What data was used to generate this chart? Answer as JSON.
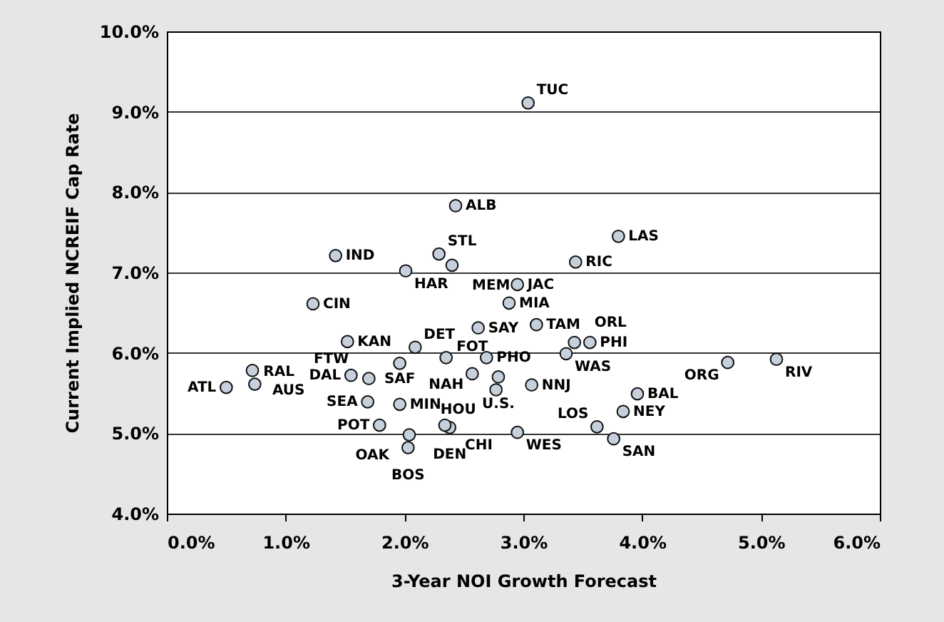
{
  "chart_data": {
    "type": "scatter",
    "xlabel": "3-Year NOI Growth Forecast",
    "ylabel": "Current Implied NCREIF Cap Rate",
    "x": [
      3.04,
      2.43,
      1.42,
      2.01,
      2.29,
      2.4,
      2.95,
      2.88,
      1.23,
      3.11,
      2.62,
      1.52,
      2.09,
      2.35,
      2.69,
      3.43,
      3.56,
      3.36,
      2.79,
      2.57,
      2.77,
      3.07,
      4.72,
      5.13,
      3.96,
      3.84,
      3.62,
      3.76,
      2.95,
      2.38,
      2.34,
      1.96,
      2.04,
      2.03,
      1.79,
      1.69,
      1.55,
      1.7,
      1.96,
      0.72,
      0.74,
      0.5,
      3.8,
      3.44
    ],
    "values": [
      9.11,
      7.83,
      7.21,
      7.02,
      7.23,
      7.09,
      6.85,
      6.62,
      6.61,
      6.35,
      6.31,
      6.14,
      6.07,
      5.94,
      5.94,
      6.13,
      6.13,
      5.99,
      5.7,
      5.74,
      5.54,
      5.6,
      5.88,
      5.92,
      5.49,
      5.27,
      5.08,
      4.93,
      5.01,
      5.07,
      5.1,
      5.36,
      4.98,
      4.82,
      5.1,
      5.39,
      5.72,
      5.68,
      5.87,
      5.78,
      5.61,
      5.57,
      7.45,
      7.13
    ],
    "color": "#c5d0dc",
    "marker": "circle",
    "xlim": [
      0,
      6
    ],
    "xticks": [
      {
        "value": 0,
        "label": "0.0%"
      },
      {
        "value": 1,
        "label": "1.0%"
      },
      {
        "value": 2,
        "label": "2.0%"
      },
      {
        "value": 3,
        "label": "3.0%"
      },
      {
        "value": 4,
        "label": "4.0%"
      },
      {
        "value": 5,
        "label": "5.0%"
      },
      {
        "value": 6,
        "label": "6.0%"
      }
    ],
    "ylim": [
      4,
      10
    ],
    "yticks": [
      {
        "value": 4,
        "label": "4.0%"
      },
      {
        "value": 5,
        "label": "5.0%"
      },
      {
        "value": 6,
        "label": "6.0%"
      },
      {
        "value": 7,
        "label": "7.0%"
      },
      {
        "value": 8,
        "label": "8.0%"
      },
      {
        "value": 9,
        "label": "9.0%"
      },
      {
        "value": 10,
        "label": "10.0%"
      }
    ],
    "grid": "y",
    "annotations": [
      {
        "text": "TUC",
        "x": 3.04,
        "y": 9.11
      },
      {
        "text": "ALB",
        "x": 2.43,
        "y": 7.83
      },
      {
        "text": "IND",
        "x": 1.42,
        "y": 7.21
      },
      {
        "text": "HAR",
        "x": 2.01,
        "y": 7.02
      },
      {
        "text": "STL",
        "x": 2.29,
        "y": 7.23
      },
      {
        "text": "MEM",
        "x": 2.4,
        "y": 7.09
      },
      {
        "text": "JAC",
        "x": 2.95,
        "y": 6.85
      },
      {
        "text": "MIA",
        "x": 2.88,
        "y": 6.62
      },
      {
        "text": "CIN",
        "x": 1.23,
        "y": 6.61
      },
      {
        "text": "TAM",
        "x": 3.11,
        "y": 6.35
      },
      {
        "text": "SAY",
        "x": 2.62,
        "y": 6.31
      },
      {
        "text": "KAN",
        "x": 1.52,
        "y": 6.14
      },
      {
        "text": "DET",
        "x": 2.09,
        "y": 6.07
      },
      {
        "text": "NAH",
        "x": 2.35,
        "y": 5.94
      },
      {
        "text": "PHO",
        "x": 2.69,
        "y": 5.94
      },
      {
        "text": "ORL",
        "x": 3.43,
        "y": 6.13
      },
      {
        "text": "PHI",
        "x": 3.56,
        "y": 6.13
      },
      {
        "text": "WAS",
        "x": 3.36,
        "y": 5.99
      },
      {
        "text": "U.S.",
        "x": 2.79,
        "y": 5.7
      },
      {
        "text": "FOT",
        "x": 2.57,
        "y": 5.74
      },
      {
        "text": "HOU",
        "x": 2.77,
        "y": 5.54
      },
      {
        "text": "NNJ",
        "x": 3.07,
        "y": 5.6
      },
      {
        "text": "ORG",
        "x": 4.72,
        "y": 5.88
      },
      {
        "text": "RIV",
        "x": 5.13,
        "y": 5.92
      },
      {
        "text": "BAL",
        "x": 3.96,
        "y": 5.49
      },
      {
        "text": "NEY",
        "x": 3.84,
        "y": 5.27
      },
      {
        "text": "LOS",
        "x": 3.62,
        "y": 5.08
      },
      {
        "text": "SAN",
        "x": 3.76,
        "y": 4.93
      },
      {
        "text": "WES",
        "x": 2.95,
        "y": 5.01
      },
      {
        "text": "DEN",
        "x": 2.38,
        "y": 5.07
      },
      {
        "text": "CHI",
        "x": 2.34,
        "y": 5.1
      },
      {
        "text": "MIN",
        "x": 1.96,
        "y": 5.36
      },
      {
        "text": "OAK",
        "x": 2.04,
        "y": 4.98
      },
      {
        "text": "BOS",
        "x": 2.03,
        "y": 4.82
      },
      {
        "text": "POT",
        "x": 1.79,
        "y": 5.1
      },
      {
        "text": "SEA",
        "x": 1.69,
        "y": 5.39
      },
      {
        "text": "DAL",
        "x": 1.55,
        "y": 5.72
      },
      {
        "text": "FTW",
        "x": 1.7,
        "y": 5.68
      },
      {
        "text": "SAF",
        "x": 1.96,
        "y": 5.87
      },
      {
        "text": "AUS",
        "x": 0.72,
        "y": 5.78
      },
      {
        "text": "RAL",
        "x": 0.74,
        "y": 5.61
      },
      {
        "text": "ATL",
        "x": 0.5,
        "y": 5.57
      },
      {
        "text": "LAS",
        "x": 3.8,
        "y": 7.45
      },
      {
        "text": "RIC",
        "x": 3.44,
        "y": 7.13
      }
    ]
  }
}
